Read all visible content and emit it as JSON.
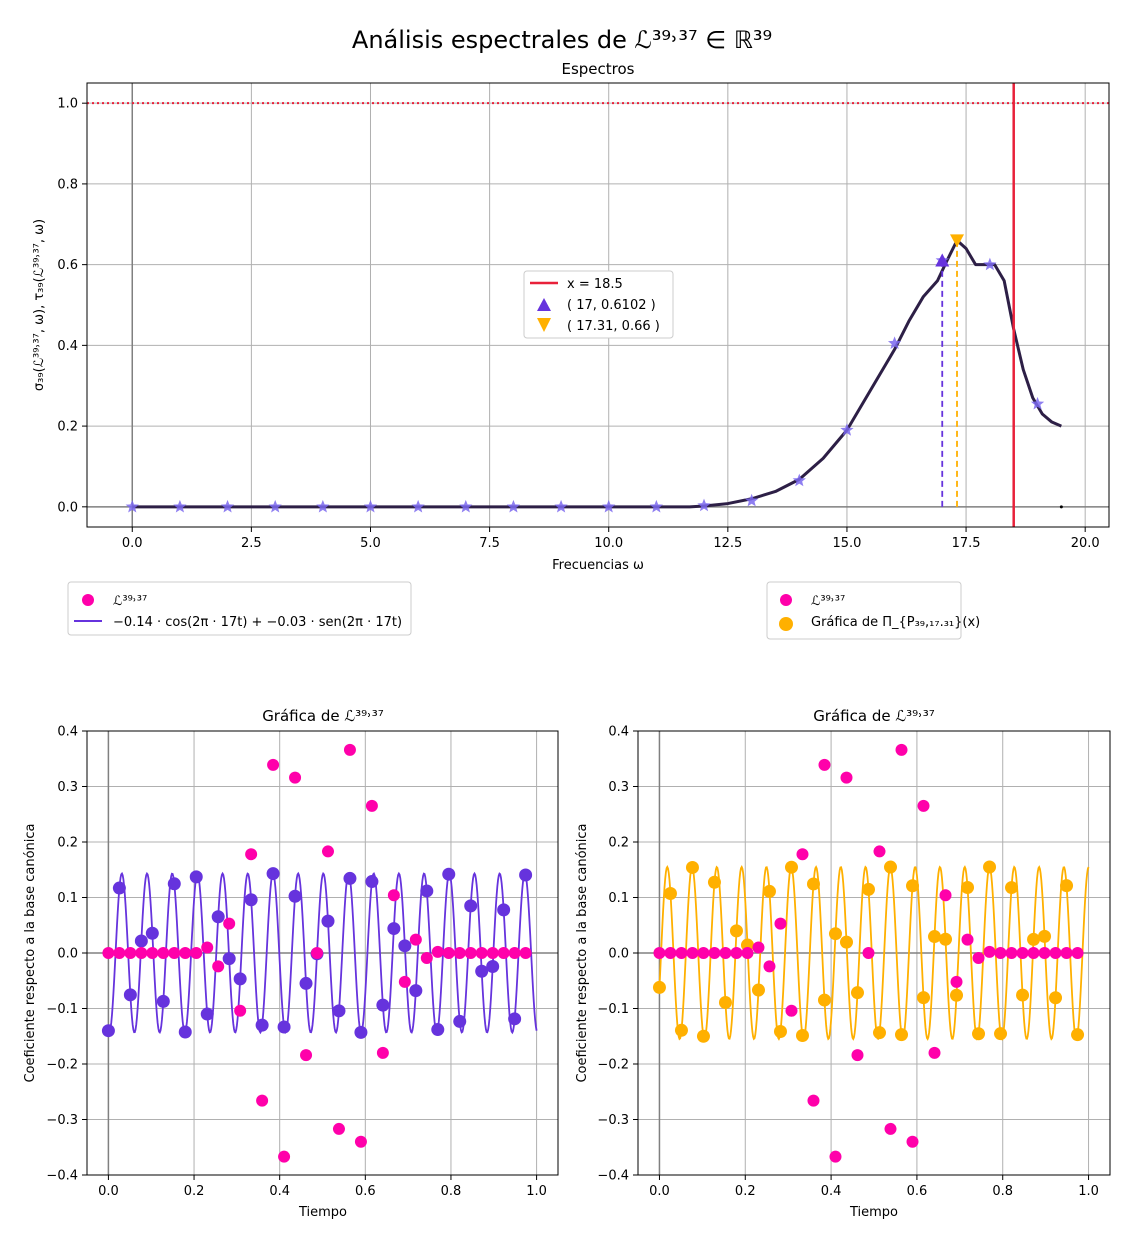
{
  "figure": {
    "suptitle": "Análisis espectrales de ℒ³⁹˒³⁷ ∈ ℝ³⁹"
  },
  "colors": {
    "vline": "#e8213a",
    "hline": "#e8213a",
    "spectrum_line": "#2d1f46",
    "stars": "#7b68ee",
    "purple": "#6633dd",
    "orange": "#ffb000",
    "magenta": "#ff00aa",
    "zero_axis": "#808080"
  },
  "chart_data": [
    {
      "id": "spectrum",
      "type": "line",
      "title": "Espectros",
      "xlabel": "Frecuencias ω",
      "ylabel": "σ₃₉(ℒ³⁹˒³⁷, ω), τ₃₉(ℒ³⁹˒³⁷, ω)",
      "xlim": [
        -0.95,
        20.5
      ],
      "ylim": [
        -0.05,
        1.05
      ],
      "xticks": [
        "0.0",
        "2.5",
        "5.0",
        "7.5",
        "10.0",
        "12.5",
        "15.0",
        "17.5",
        "20.0"
      ],
      "yticks": [
        "0.0",
        "0.2",
        "0.4",
        "0.6",
        "0.8",
        "1.0"
      ],
      "grid": true,
      "legend_position": "center",
      "series": [
        {
          "kind": "curve",
          "x": [
            0,
            11.7,
            12.0,
            12.5,
            13.0,
            13.5,
            14.0,
            14.5,
            15.0,
            15.5,
            16.0,
            16.3,
            16.6,
            16.9,
            17.1,
            17.31,
            17.5,
            17.7,
            17.9,
            18.1,
            18.3,
            18.5,
            18.7,
            18.9,
            19.1,
            19.3,
            19.5
          ],
          "y": [
            0,
            0,
            0.002,
            0.008,
            0.02,
            0.038,
            0.068,
            0.12,
            0.19,
            0.29,
            0.39,
            0.46,
            0.52,
            0.56,
            0.61,
            0.66,
            0.64,
            0.6,
            0.6,
            0.6,
            0.56,
            0.44,
            0.34,
            0.27,
            0.23,
            0.21,
            0.2
          ]
        },
        {
          "kind": "stars",
          "x": [
            0,
            1,
            2,
            3,
            4,
            5,
            6,
            7,
            8,
            9,
            10,
            11,
            12,
            13,
            14,
            15,
            16,
            17,
            18,
            19
          ],
          "y": [
            0,
            0,
            0,
            0,
            0,
            0,
            0,
            0,
            0,
            0,
            0,
            0,
            0.003,
            0.015,
            0.065,
            0.19,
            0.405,
            0.6102,
            0.6,
            0.255
          ]
        },
        {
          "name": "x = 18.5",
          "kind": "vline",
          "x": 18.5
        },
        {
          "kind": "hline",
          "y": 1.0
        },
        {
          "name": "( 17, 0.6102 )",
          "kind": "marker-up",
          "x": 17,
          "y": 0.6102
        },
        {
          "name": "( 17.31, 0.66 )",
          "kind": "marker-down",
          "x": 17.31,
          "y": 0.66
        }
      ]
    },
    {
      "id": "time_left",
      "type": "scatter",
      "title": "Gráfica de ℒ³⁹˒³⁷",
      "xlabel": "Tiempo",
      "ylabel": "Coeficiente respecto a la base canónica",
      "xlim": [
        -0.05,
        1.05
      ],
      "ylim": [
        -0.4,
        0.4
      ],
      "xticks": [
        "0.0",
        "0.2",
        "0.4",
        "0.6",
        "0.8",
        "1.0"
      ],
      "yticks": [
        "−0.4",
        "−0.3",
        "−0.2",
        "−0.1",
        "0.0",
        "0.1",
        "0.2",
        "0.3",
        "0.4"
      ],
      "grid": true,
      "fit": {
        "a": -0.14,
        "b": -0.03,
        "f": 17,
        "dots": "purple"
      },
      "legend": [
        {
          "label": "ℒ³⁹˒³⁷",
          "marker": "dot"
        },
        {
          "label": "−0.14 · cos(2π · 17t) + −0.03 · sen(2π · 17t)",
          "marker": "line"
        }
      ]
    },
    {
      "id": "time_right",
      "type": "scatter",
      "title": "Gráfica de ℒ³⁹˒³⁷",
      "xlabel": "Tiempo",
      "ylabel": "Coeficiente respecto a la base canónica",
      "xlim": [
        -0.05,
        1.05
      ],
      "ylim": [
        -0.4,
        0.4
      ],
      "xticks": [
        "0.0",
        "0.2",
        "0.4",
        "0.6",
        "0.8",
        "1.0"
      ],
      "yticks": [
        "−0.4",
        "−0.3",
        "−0.2",
        "−0.1",
        "0.0",
        "0.1",
        "0.2",
        "0.3",
        "0.4"
      ],
      "grid": true,
      "fit": {
        "a": -0.062,
        "b": 0.142,
        "f": 17.31,
        "dots": "orange"
      },
      "legend": [
        {
          "label": "ℒ³⁹˒³⁷",
          "marker": "dot"
        },
        {
          "label": "Gráfica de Π_{P₃₉,₁₇.₃₁}(x)",
          "marker": "bigdot"
        }
      ]
    }
  ],
  "signal": {
    "t_count": 39,
    "values": [
      0,
      0,
      0,
      0,
      0,
      0,
      0,
      0,
      0,
      0.01,
      -0.024,
      0.053,
      -0.104,
      0.178,
      -0.266,
      0.339,
      -0.367,
      0.316,
      -0.184,
      0.0,
      0.183,
      -0.317,
      0.366,
      -0.34,
      0.265,
      -0.18,
      0.104,
      -0.052,
      0.024,
      -0.009,
      0.002,
      0,
      0,
      0,
      0,
      0,
      0,
      0,
      0
    ]
  }
}
